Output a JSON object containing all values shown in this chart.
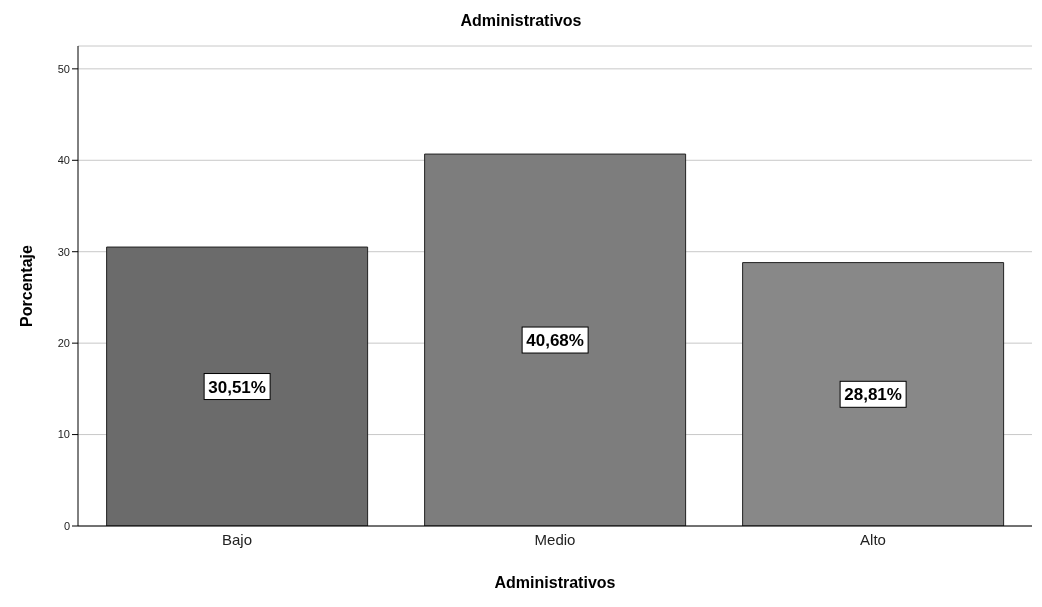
{
  "chart_data": {
    "type": "bar",
    "title": "Administrativos",
    "xlabel": "Administrativos",
    "ylabel": "Porcentaje",
    "categories": [
      "Bajo",
      "Medio",
      "Alto"
    ],
    "values": [
      30.51,
      40.68,
      28.81
    ],
    "colors": [
      "#6b6b6b",
      "#7d7d7d",
      "#888888"
    ],
    "value_labels": [
      "30,51%",
      "40,68%",
      "28,81%"
    ],
    "ylim": [
      0,
      52.5
    ],
    "yticks": [
      0,
      10,
      20,
      30,
      40,
      50
    ],
    "grid": "y"
  }
}
